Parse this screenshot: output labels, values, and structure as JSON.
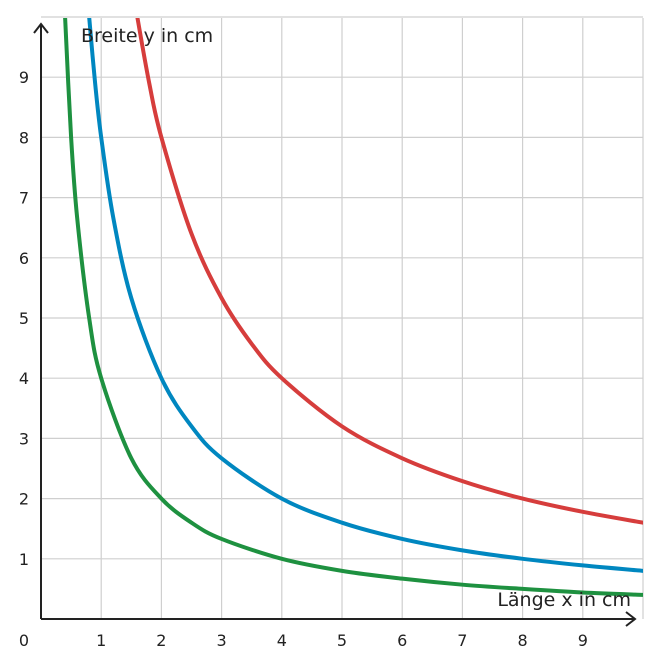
{
  "chart_data": {
    "type": "line",
    "xlabel": "Länge x in cm",
    "ylabel": "Breite y in cm",
    "origin_label": "0",
    "xlim": [
      0,
      10
    ],
    "ylim": [
      0,
      10
    ],
    "x_ticks": [
      1,
      2,
      3,
      4,
      5,
      6,
      7,
      8,
      9
    ],
    "y_ticks": [
      1,
      2,
      3,
      4,
      5,
      6,
      7,
      8,
      9
    ],
    "x_tick_labels": [
      "1",
      "2",
      "3",
      "4",
      "5",
      "6",
      "7",
      "8",
      "9"
    ],
    "y_tick_labels": [
      "1",
      "2",
      "3",
      "4",
      "5",
      "6",
      "7",
      "8",
      "9"
    ],
    "grid": true,
    "series": [
      {
        "color": "#1e9140",
        "x": [
          0.4,
          0.5,
          0.6,
          0.8,
          1,
          1.5,
          2,
          2.5,
          3,
          4,
          5,
          6,
          7,
          8,
          9,
          10
        ],
        "values": [
          10,
          8,
          6.67,
          5,
          4,
          2.67,
          2,
          1.6,
          1.33,
          1,
          0.8,
          0.67,
          0.57,
          0.5,
          0.44,
          0.4
        ]
      },
      {
        "color": "#0087c0",
        "x": [
          0.8,
          0.9,
          1,
          1.2,
          1.5,
          2,
          2.5,
          3,
          4,
          5,
          6,
          7,
          8,
          9,
          10
        ],
        "values": [
          10,
          8.89,
          8,
          6.67,
          5.33,
          4,
          3.2,
          2.67,
          2,
          1.6,
          1.33,
          1.14,
          1,
          0.89,
          0.8
        ]
      },
      {
        "color": "#d63d3c",
        "x": [
          1.6,
          1.8,
          2,
          2.5,
          3,
          3.5,
          4,
          5,
          6,
          7,
          8,
          9,
          10
        ],
        "values": [
          10,
          8.89,
          8,
          6.4,
          5.33,
          4.57,
          4,
          3.2,
          2.67,
          2.29,
          2,
          1.78,
          1.6
        ]
      }
    ]
  }
}
